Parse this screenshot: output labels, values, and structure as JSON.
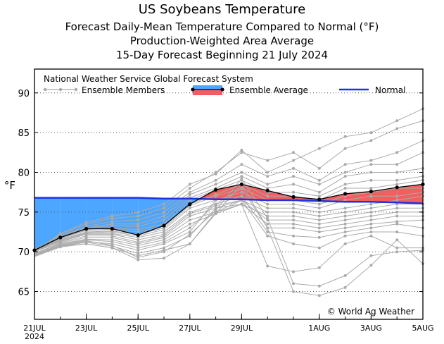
{
  "titles": {
    "main": "US Soybeans Temperature",
    "line2": "Forecast Daily-Mean Temperature Compared to Normal (°F)",
    "line3": "Production-Weighted Area Average",
    "line4": "15-Day Forecast Beginning 21 July 2024"
  },
  "colors": {
    "ensemble_members": "#aaaaaa",
    "ensemble_average": "#000000",
    "normal": "#1f33e0",
    "below_normal_fill": "#4da6ff",
    "above_normal_fill": "#f25f5f"
  },
  "chart_data": {
    "type": "line",
    "ylabel": "°F",
    "ylim": [
      61.5,
      93
    ],
    "yticks": [
      65,
      70,
      75,
      80,
      85,
      90
    ],
    "grid": true,
    "x_days": [
      0,
      1,
      2,
      3,
      4,
      5,
      6,
      7,
      8,
      9,
      10,
      11,
      12,
      13,
      14,
      15
    ],
    "xlim": [
      0,
      15
    ],
    "xtick_days": [
      0,
      2,
      4,
      6,
      8,
      11,
      13,
      15
    ],
    "xtick_labels": [
      "21JUL",
      "23JUL",
      "25JUL",
      "27JUL",
      "29JUL",
      "1AUG",
      "3AUG",
      "5AUG"
    ],
    "xtick_sublabel": "2024",
    "legend": {
      "header": "National Weather Service Global Forecast System",
      "members_label": "Ensemble Members",
      "average_label": "Ensemble Average",
      "normal_label": "Normal"
    },
    "normal": [
      76.8,
      76.8,
      76.8,
      76.8,
      76.8,
      76.7,
      76.7,
      76.6,
      76.6,
      76.5,
      76.5,
      76.4,
      76.3,
      76.3,
      76.2,
      76.1
    ],
    "ensemble_average": [
      70.2,
      71.8,
      72.9,
      72.9,
      72.1,
      73.3,
      76.0,
      77.8,
      78.5,
      77.7,
      76.9,
      76.6,
      77.3,
      77.6,
      78.1,
      78.5
    ],
    "ensemble_members": [
      [
        70.0,
        72.3,
        73.7,
        74.5,
        75.0,
        76.0,
        78.5,
        79.8,
        82.8,
        80.0,
        81.5,
        83.0,
        84.5,
        85.0,
        86.5,
        88.0
      ],
      [
        70.0,
        72.2,
        73.5,
        74.2,
        74.5,
        75.5,
        78.0,
        80.0,
        82.5,
        81.5,
        82.5,
        80.5,
        83.0,
        84.0,
        85.5,
        86.5
      ],
      [
        70.2,
        72.0,
        73.2,
        73.8,
        74.0,
        75.0,
        77.5,
        79.0,
        81.0,
        79.5,
        80.5,
        79.0,
        81.0,
        81.5,
        82.5,
        84.0
      ],
      [
        70.3,
        72.0,
        73.0,
        73.5,
        73.5,
        74.5,
        77.2,
        78.5,
        80.0,
        78.5,
        79.5,
        78.5,
        80.0,
        81.0,
        81.0,
        82.5
      ],
      [
        70.3,
        71.8,
        73.0,
        73.3,
        73.2,
        74.0,
        76.8,
        78.0,
        79.5,
        78.0,
        78.5,
        77.5,
        79.5,
        80.0,
        80.0,
        80.5
      ],
      [
        70.1,
        71.7,
        72.8,
        73.0,
        72.8,
        73.5,
        76.5,
        77.8,
        79.0,
        77.5,
        77.5,
        77.0,
        78.5,
        79.0,
        79.0,
        79.5
      ],
      [
        70.2,
        71.6,
        72.7,
        72.8,
        72.5,
        73.2,
        76.0,
        77.2,
        78.5,
        77.0,
        77.0,
        76.5,
        78.0,
        78.0,
        78.5,
        79.0
      ],
      [
        70.0,
        71.5,
        72.5,
        72.6,
        72.2,
        73.0,
        75.8,
        77.0,
        78.0,
        76.5,
        76.5,
        76.0,
        77.0,
        77.5,
        78.0,
        78.0
      ],
      [
        70.1,
        71.5,
        72.4,
        72.5,
        72.0,
        72.8,
        75.5,
        76.5,
        77.5,
        76.0,
        76.0,
        75.5,
        76.5,
        77.0,
        77.0,
        77.5
      ],
      [
        70.0,
        71.4,
        72.3,
        72.3,
        71.8,
        72.5,
        75.0,
        76.0,
        77.0,
        75.5,
        75.5,
        75.0,
        75.5,
        76.0,
        76.5,
        77.0
      ],
      [
        70.2,
        71.3,
        72.2,
        72.2,
        71.5,
        72.2,
        74.8,
        75.8,
        76.5,
        75.0,
        75.0,
        74.5,
        75.0,
        75.5,
        76.0,
        76.0
      ],
      [
        70.0,
        71.2,
        72.0,
        72.0,
        71.2,
        72.0,
        74.5,
        75.5,
        76.0,
        74.5,
        74.5,
        74.0,
        74.5,
        75.0,
        75.5,
        75.5
      ],
      [
        69.8,
        71.1,
        71.8,
        71.8,
        71.0,
        71.8,
        74.0,
        75.0,
        76.5,
        74.0,
        74.0,
        73.5,
        74.0,
        74.5,
        75.0,
        75.0
      ],
      [
        69.8,
        71.0,
        71.6,
        71.5,
        70.8,
        71.5,
        73.5,
        74.8,
        76.0,
        73.5,
        73.5,
        73.0,
        73.5,
        74.0,
        74.5,
        74.5
      ],
      [
        69.7,
        70.9,
        71.5,
        71.3,
        70.5,
        71.2,
        73.0,
        76.0,
        78.0,
        73.0,
        73.0,
        72.5,
        73.0,
        73.5,
        73.8,
        74.0
      ],
      [
        69.6,
        70.8,
        71.3,
        71.0,
        70.2,
        71.0,
        72.5,
        76.5,
        77.0,
        72.5,
        72.0,
        71.8,
        72.5,
        73.0,
        73.5,
        73.0
      ],
      [
        69.5,
        70.7,
        71.2,
        70.7,
        69.8,
        70.5,
        72.0,
        75.5,
        76.5,
        72.0,
        71.0,
        70.5,
        72.0,
        72.5,
        72.5,
        72.0
      ],
      [
        69.5,
        70.7,
        71.0,
        70.5,
        69.5,
        70.2,
        71.0,
        75.0,
        76.0,
        68.2,
        67.5,
        68.0,
        71.0,
        72.0,
        70.5,
        70.5
      ],
      [
        69.4,
        70.6,
        71.0,
        70.5,
        69.0,
        69.2,
        71.0,
        74.8,
        78.5,
        73.0,
        65.0,
        64.5,
        65.5,
        68.3,
        71.5,
        68.5
      ],
      [
        69.5,
        70.8,
        71.4,
        70.8,
        69.3,
        70.0,
        72.2,
        75.2,
        79.2,
        74.2,
        66.0,
        65.7,
        67.0,
        69.5,
        70.0,
        70.2
      ]
    ]
  },
  "watermark": "© World Ag Weather"
}
